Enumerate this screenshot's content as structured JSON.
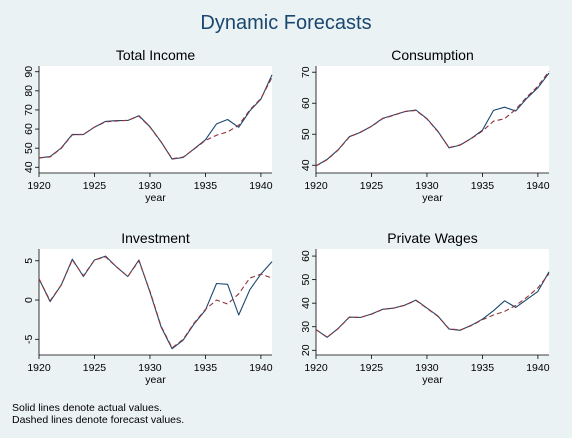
{
  "title": "Dynamic Forecasts",
  "note_lines": [
    "Solid lines denote actual values.",
    "Dashed lines denote forecast values."
  ],
  "colors": {
    "background": "#eaf2f3",
    "panel": "#ffffff",
    "actual": "#1a476f",
    "forecast": "#90353b",
    "text": "#000000",
    "title": "#1a476f"
  },
  "chart_data": [
    {
      "type": "line",
      "title": "Total Income",
      "xlabel": "year",
      "xlim": [
        1920,
        1941
      ],
      "xticks": [
        1920,
        1925,
        1930,
        1935,
        1940
      ],
      "ylim": [
        37,
        93
      ],
      "yticks": [
        40,
        50,
        60,
        70,
        80,
        90
      ],
      "x": [
        1920,
        1921,
        1922,
        1923,
        1924,
        1925,
        1926,
        1927,
        1928,
        1929,
        1930,
        1931,
        1932,
        1933,
        1934,
        1935,
        1936,
        1937,
        1938,
        1939,
        1940,
        1941
      ],
      "series": [
        {
          "role": "actual",
          "values": [
            44.9,
            45.6,
            50.1,
            57.2,
            57.1,
            61.0,
            64.0,
            64.4,
            64.5,
            67.0,
            61.2,
            53.4,
            44.3,
            45.1,
            49.7,
            54.4,
            62.7,
            65.0,
            60.9,
            69.5,
            75.7,
            88.4
          ]
        },
        {
          "role": "forecast",
          "values": [
            44.9,
            45.4,
            49.9,
            57.0,
            57.2,
            61.0,
            63.8,
            64.2,
            64.6,
            66.8,
            61.0,
            53.3,
            44.5,
            45.3,
            49.6,
            54.0,
            56.8,
            58.5,
            62.0,
            70.0,
            76.0,
            87.0
          ]
        }
      ]
    },
    {
      "type": "line",
      "title": "Consumption",
      "xlabel": "year",
      "xlim": [
        1920,
        1941
      ],
      "xticks": [
        1920,
        1925,
        1930,
        1935,
        1940
      ],
      "ylim": [
        37.5,
        72
      ],
      "yticks": [
        40,
        50,
        60,
        70
      ],
      "x": [
        1920,
        1921,
        1922,
        1923,
        1924,
        1925,
        1926,
        1927,
        1928,
        1929,
        1930,
        1931,
        1932,
        1933,
        1934,
        1935,
        1936,
        1937,
        1938,
        1939,
        1940,
        1941
      ],
      "series": [
        {
          "role": "actual",
          "values": [
            39.8,
            41.9,
            45.0,
            49.2,
            50.6,
            52.6,
            55.1,
            56.2,
            57.3,
            57.8,
            55.0,
            50.9,
            45.6,
            46.5,
            48.7,
            51.3,
            57.7,
            58.7,
            57.5,
            61.6,
            65.0,
            69.7
          ]
        },
        {
          "role": "forecast",
          "values": [
            39.8,
            41.8,
            44.9,
            49.1,
            50.7,
            52.5,
            55.0,
            56.1,
            57.3,
            57.7,
            54.9,
            50.8,
            45.7,
            46.6,
            48.6,
            51.0,
            54.2,
            55.0,
            58.0,
            62.0,
            65.5,
            70.3
          ]
        }
      ]
    },
    {
      "type": "line",
      "title": "Investment",
      "xlabel": "year",
      "xlim": [
        1920,
        1941
      ],
      "xticks": [
        1920,
        1925,
        1930,
        1935,
        1940
      ],
      "ylim": [
        -7,
        6.5
      ],
      "yticks": [
        5,
        0,
        -5
      ],
      "x": [
        1920,
        1921,
        1922,
        1923,
        1924,
        1925,
        1926,
        1927,
        1928,
        1929,
        1930,
        1931,
        1932,
        1933,
        1934,
        1935,
        1936,
        1937,
        1938,
        1939,
        1940,
        1941
      ],
      "series": [
        {
          "role": "actual",
          "values": [
            2.7,
            -0.2,
            1.9,
            5.2,
            3.0,
            5.1,
            5.6,
            4.2,
            3.0,
            5.1,
            1.0,
            -3.4,
            -6.2,
            -5.1,
            -3.0,
            -1.3,
            2.1,
            2.0,
            -1.9,
            1.3,
            3.3,
            4.9
          ]
        },
        {
          "role": "forecast",
          "values": [
            2.7,
            -0.1,
            1.9,
            5.1,
            3.1,
            5.1,
            5.5,
            4.2,
            3.0,
            5.0,
            1.1,
            -3.3,
            -6.1,
            -5.0,
            -2.9,
            -1.2,
            0.0,
            -0.5,
            0.8,
            2.8,
            3.3,
            2.8
          ]
        }
      ]
    },
    {
      "type": "line",
      "title": "Private Wages",
      "xlabel": "year",
      "xlim": [
        1920,
        1941
      ],
      "xticks": [
        1920,
        1925,
        1930,
        1935,
        1940
      ],
      "ylim": [
        18,
        63
      ],
      "yticks": [
        20,
        30,
        40,
        50,
        60
      ],
      "x": [
        1920,
        1921,
        1922,
        1923,
        1924,
        1925,
        1926,
        1927,
        1928,
        1929,
        1930,
        1931,
        1932,
        1933,
        1934,
        1935,
        1936,
        1937,
        1938,
        1939,
        1940,
        1941
      ],
      "series": [
        {
          "role": "actual",
          "values": [
            28.8,
            25.5,
            29.3,
            34.1,
            33.9,
            35.4,
            37.4,
            37.9,
            39.2,
            41.3,
            37.9,
            34.5,
            29.0,
            28.5,
            30.6,
            33.2,
            36.8,
            41.0,
            38.2,
            41.6,
            45.0,
            53.3
          ]
        },
        {
          "role": "forecast",
          "values": [
            28.8,
            25.6,
            29.2,
            34.0,
            34.0,
            35.3,
            37.3,
            37.9,
            39.1,
            41.2,
            37.8,
            34.4,
            29.1,
            28.6,
            30.5,
            33.0,
            35.0,
            36.5,
            39.0,
            42.5,
            46.5,
            52.5
          ]
        }
      ]
    }
  ]
}
